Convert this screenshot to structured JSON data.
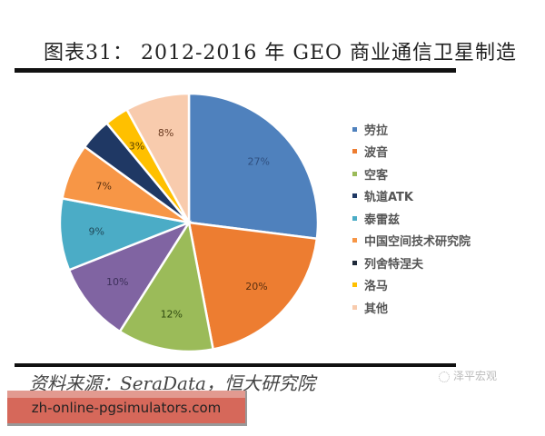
{
  "header": {
    "title": "图表31：  2012-2016 年 GEO 商业通信卫星制造"
  },
  "chart_data": {
    "type": "pie",
    "title": "图表31： 2012-2016 年 GEO 商业通信卫星制造",
    "start_angle": "12 o'clock, clockwise",
    "legend_position": "right",
    "categories": [
      "劳拉",
      "波音",
      "空客",
      "轨道ATK",
      "泰雷兹",
      "中国空间技术研究院",
      "列舍特涅夫",
      "洛马",
      "其他"
    ],
    "values": [
      27,
      20,
      12,
      10,
      9,
      7,
      4,
      3,
      8
    ],
    "labels": [
      "27%",
      "20%",
      "12%",
      "10%",
      "9%",
      "7%",
      "",
      "3%",
      "8%"
    ],
    "colors": [
      "#4f81bd",
      "#ed7d31",
      "#9bbb59",
      "#8064a2",
      "#4bacc6",
      "#f79646",
      "#1f3864",
      "#ffc000",
      "#f8cbad"
    ],
    "label_colors": [
      "#2f4f7f",
      "#5a3010",
      "#2f4a10",
      "#3c2f5a",
      "#204a5a",
      "#5a3010",
      "#ffffff",
      "#5a4000",
      "#6a3a20"
    ]
  },
  "legend": {
    "items": [
      {
        "label": "劳拉",
        "color": "#4f81bd"
      },
      {
        "label": "波音",
        "color": "#ed7d31"
      },
      {
        "label": "空客",
        "color": "#9bbb59"
      },
      {
        "label": "轨道ATK",
        "color": "#1f3864"
      },
      {
        "label": "泰雷兹",
        "color": "#4bacc6"
      },
      {
        "label": "中国空间技术研究院",
        "color": "#f79646"
      },
      {
        "label": "列舍特涅夫",
        "color": "#1f2a3a"
      },
      {
        "label": "洛马",
        "color": "#ffc000"
      },
      {
        "label": "其他",
        "color": "#f8cbad"
      }
    ]
  },
  "footer": {
    "source": "资料来源：SeraData，恒大研究院",
    "watermark": "泽平宏观"
  },
  "banner": {
    "text": "zh-online-pgsimulators.com"
  }
}
